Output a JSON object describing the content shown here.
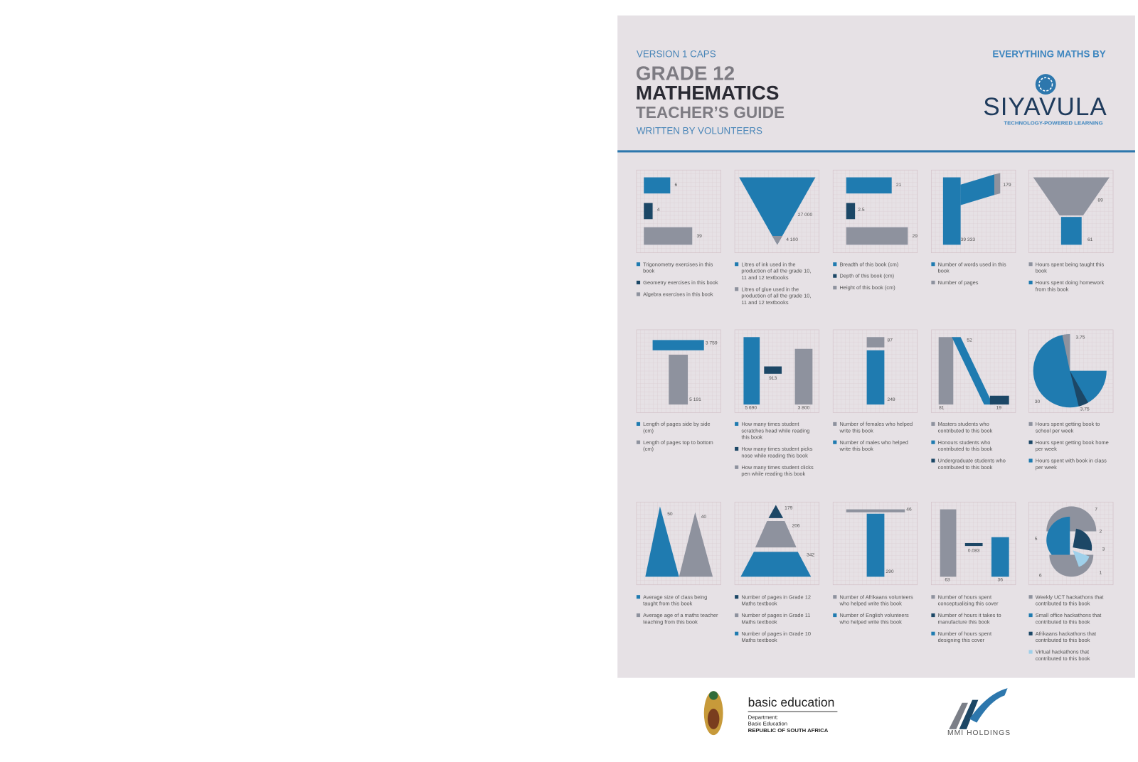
{
  "header": {
    "version": "VERSION 1 CAPS",
    "grade": "GRADE 12",
    "subject": "MATHEMATICS",
    "guide": "TEACHER’S GUIDE",
    "authors": "WRITTEN BY VOLUNTEERS",
    "brand_prefix": "EVERYTHING MATHS BY",
    "brand": "SIYAVULA",
    "brand_tagline": "TECHNOLOGY-POWERED LEARNING"
  },
  "panels": [
    {
      "labels": [
        "6",
        "4",
        "39"
      ],
      "legend": [
        {
          "text": "Trigonometry exercises in this book",
          "color": "#1f7bb0"
        },
        {
          "text": "Geometry exercises in this book",
          "color": "#1c4766"
        },
        {
          "text": "Algebra exercises in this book",
          "color": "#8e929e"
        }
      ]
    },
    {
      "labels": [
        "27 000",
        "4 100"
      ],
      "legend": [
        {
          "text": "Litres of ink used in the production of all the grade 10, 11 and 12 textbooks",
          "color": "#1f7bb0"
        },
        {
          "text": "Litres of glue used in the production of all the grade 10, 11 and 12 textbooks",
          "color": "#8e929e"
        }
      ]
    },
    {
      "labels": [
        "21",
        "2.5",
        "29"
      ],
      "legend": [
        {
          "text": "Breadth of this book (cm)",
          "color": "#1f7bb0"
        },
        {
          "text": "Depth of this book (cm)",
          "color": "#1c4766"
        },
        {
          "text": "Height of this book (cm)",
          "color": "#8e929e"
        }
      ]
    },
    {
      "labels": [
        "179",
        "39 333"
      ],
      "legend": [
        {
          "text": "Number of words used in this book",
          "color": "#1f7bb0"
        },
        {
          "text": "Number of pages",
          "color": "#8e929e"
        }
      ]
    },
    {
      "labels": [
        "89",
        "61"
      ],
      "legend": [
        {
          "text": "Hours spent being taught this book",
          "color": "#8e929e"
        },
        {
          "text": "Hours spent doing homework from this book",
          "color": "#1f7bb0"
        }
      ]
    },
    {
      "labels": [
        "3 759",
        "5 191"
      ],
      "legend": [
        {
          "text": "Length of pages side by side (cm)",
          "color": "#1f7bb0"
        },
        {
          "text": "Length of pages top to bottom (cm)",
          "color": "#8e929e"
        }
      ]
    },
    {
      "labels": [
        "913",
        "5 690",
        "3 800"
      ],
      "legend": [
        {
          "text": "How many times student scratches head while reading this book",
          "color": "#1f7bb0"
        },
        {
          "text": "How many times student picks nose while reading this book",
          "color": "#1c4766"
        },
        {
          "text": "How many times student clicks pen while reading this book",
          "color": "#8e929e"
        }
      ]
    },
    {
      "labels": [
        "87",
        "249"
      ],
      "legend": [
        {
          "text": "Number of females who helped write this book",
          "color": "#8e929e"
        },
        {
          "text": "Number of males who helped write this book",
          "color": "#1f7bb0"
        }
      ]
    },
    {
      "labels": [
        "52",
        "81",
        "19"
      ],
      "legend": [
        {
          "text": "Masters students who contributed to this book",
          "color": "#8e929e"
        },
        {
          "text": "Honours students who contributed to this book",
          "color": "#1f7bb0"
        },
        {
          "text": "Undergraduate students who contributed to this book",
          "color": "#1c4766"
        }
      ]
    },
    {
      "labels": [
        "3.75",
        "30",
        "3.75"
      ],
      "legend": [
        {
          "text": "Hours spent getting book to school per week",
          "color": "#8e929e"
        },
        {
          "text": "Hours spent getting book home per week",
          "color": "#1c4766"
        },
        {
          "text": "Hours spent with book in class per week",
          "color": "#1f7bb0"
        }
      ]
    },
    {
      "labels": [
        "50",
        "40"
      ],
      "legend": [
        {
          "text": "Average size of class being taught from this book",
          "color": "#1f7bb0"
        },
        {
          "text": "Average age of a maths teacher teaching from this book",
          "color": "#8e929e"
        }
      ]
    },
    {
      "labels": [
        "179",
        "206",
        "342"
      ],
      "legend": [
        {
          "text": "Number of pages in Grade 12 Maths textbook",
          "color": "#1c4766"
        },
        {
          "text": "Number of pages in Grade 11 Maths textbook",
          "color": "#8e929e"
        },
        {
          "text": "Number of pages in Grade 10 Maths textbook",
          "color": "#1f7bb0"
        }
      ]
    },
    {
      "labels": [
        "46",
        "290"
      ],
      "legend": [
        {
          "text": "Number of Afrikaans volunteers who helped write this book",
          "color": "#8e929e"
        },
        {
          "text": "Number of English volunteers who helped write this book",
          "color": "#1f7bb0"
        }
      ]
    },
    {
      "labels": [
        "0.083",
        "63",
        "36"
      ],
      "legend": [
        {
          "text": "Number of hours spent conceptualising this cover",
          "color": "#8e929e"
        },
        {
          "text": "Number of hours it takes to manufacture this book",
          "color": "#1c4766"
        },
        {
          "text": "Number of hours spent designing this cover",
          "color": "#1f7bb0"
        }
      ]
    },
    {
      "labels": [
        "7",
        "5",
        "2",
        "3",
        "1",
        "6"
      ],
      "legend": [
        {
          "text": "Weekly UCT hackathons that contributed to this book",
          "color": "#8e929e"
        },
        {
          "text": "Small office hackathons that contributed to this book",
          "color": "#1f7bb0"
        },
        {
          "text": "Afrikaans hackathons that contributed to this book",
          "color": "#1c4766"
        },
        {
          "text": "Virtual hackathons that contributed to this book",
          "color": "#9fd0ea"
        }
      ]
    }
  ],
  "footer": {
    "dept_name": "basic education",
    "dept_label": "Department:",
    "dept": "Basic Education",
    "country": "REPUBLIC OF SOUTH AFRICA",
    "sponsor": "MMI HOLDINGS"
  }
}
